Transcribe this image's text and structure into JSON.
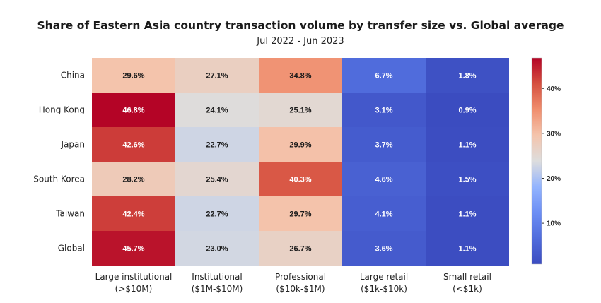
{
  "chart_data": {
    "type": "heatmap",
    "title": "Share of Eastern Asia country transaction volume by transfer size vs. Global average",
    "subtitle": "Jul 2022 - Jun 2023",
    "rows": [
      "China",
      "Hong Kong",
      "Japan",
      "South Korea",
      "Taiwan",
      "Global"
    ],
    "columns": [
      {
        "line1": "Large institutional",
        "line2": "(>$10M)"
      },
      {
        "line1": "Institutional",
        "line2": "($1M-$10M)"
      },
      {
        "line1": "Professional",
        "line2": "($10k-$1M)"
      },
      {
        "line1": "Large retail",
        "line2": "($1k-$10k)"
      },
      {
        "line1": "Small retail",
        "line2": "(<$1k)"
      }
    ],
    "values": [
      [
        29.6,
        27.1,
        34.8,
        6.7,
        1.8
      ],
      [
        46.8,
        24.1,
        25.1,
        3.1,
        0.9
      ],
      [
        42.6,
        22.7,
        29.9,
        3.7,
        1.1
      ],
      [
        28.2,
        25.4,
        40.3,
        4.6,
        1.5
      ],
      [
        42.4,
        22.7,
        29.7,
        4.1,
        1.1
      ],
      [
        45.7,
        23.0,
        26.7,
        3.6,
        1.1
      ]
    ],
    "value_suffix": "%",
    "colormap": "coolwarm",
    "color_range": [
      0.9,
      46.8
    ],
    "colorbar_ticks": [
      "10%",
      "20%",
      "30%",
      "40%"
    ],
    "colorbar_tick_values": [
      10,
      20,
      30,
      40
    ],
    "colors": {
      "low": "#3b4cc0",
      "mid": "#dddddd",
      "high": "#b40426"
    }
  }
}
